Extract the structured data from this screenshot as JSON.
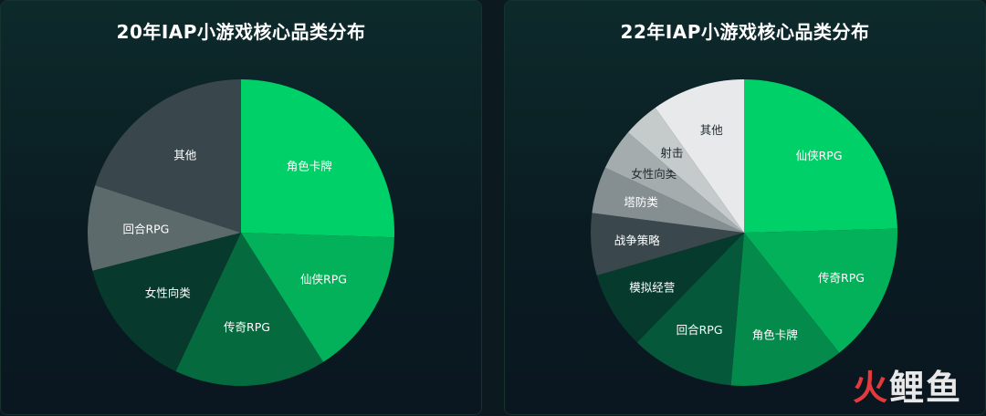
{
  "colors": {
    "background": "#0c1a20",
    "label_light": "#ffffff",
    "label_dark": "#1f2a2e"
  },
  "watermark": {
    "part1": "火",
    "part2": "鲤鱼"
  },
  "chart_data": [
    {
      "type": "pie",
      "title": "20年IAP小游戏核心品类分布",
      "categories": [
        "角色卡牌",
        "仙侠RPG",
        "传奇RPG",
        "女性向类",
        "回合RPG",
        "其他"
      ],
      "values": [
        25.5,
        15.5,
        16,
        14,
        9,
        20
      ],
      "colors": [
        "#00d068",
        "#03b15a",
        "#066a3f",
        "#073a2c",
        "#5d6a6c",
        "#39474c"
      ],
      "label_colors": [
        "#ffffff",
        "#ffffff",
        "#ffffff",
        "#ffffff",
        "#ffffff",
        "#ffffff"
      ]
    },
    {
      "type": "pie",
      "title": "22年IAP小游戏核心品类分布",
      "categories": [
        "仙侠RPG",
        "传奇RPG",
        "角色卡牌",
        "回合RPG",
        "模拟经营",
        "战争策略",
        "塔防类",
        "女性向类",
        "射击",
        "其他"
      ],
      "values": [
        22.5,
        13.5,
        11,
        10,
        7.5,
        6,
        4.5,
        4,
        3.5,
        9
      ],
      "colors": [
        "#00d068",
        "#03b15a",
        "#048a4b",
        "#05593a",
        "#063a2d",
        "#3a474c",
        "#858f92",
        "#a5acae",
        "#c5cacb",
        "#e8e9ea"
      ],
      "label_colors": [
        "#ffffff",
        "#ffffff",
        "#ffffff",
        "#ffffff",
        "#ffffff",
        "#ffffff",
        "#ffffff",
        "#1f2a2e",
        "#1f2a2e",
        "#1f2a2e"
      ]
    }
  ]
}
